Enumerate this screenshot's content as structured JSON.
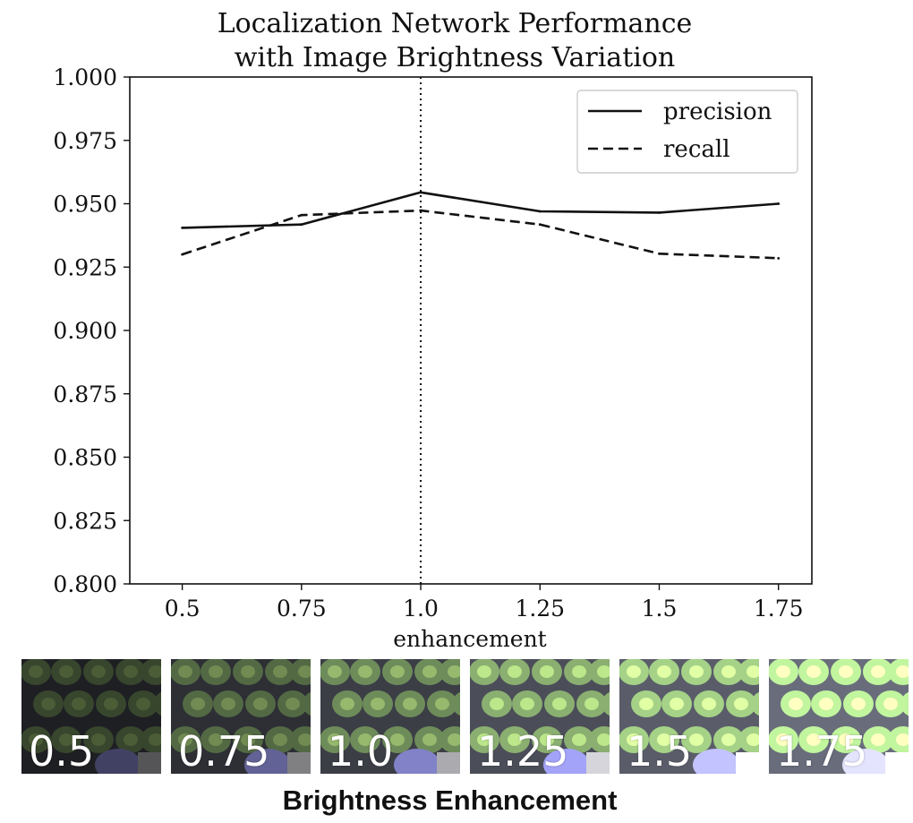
{
  "chart_data": {
    "type": "line",
    "title_line1": "Localization Network Performance",
    "title_line2": "with Image Brightness Variation",
    "xlabel": "enhancement",
    "ylabel": "",
    "x_tick_labels": [
      "0.5",
      "0.75",
      "1.0",
      "1.25",
      "1.5",
      "1.75"
    ],
    "y_tick_labels": [
      "0.800",
      "0.825",
      "0.850",
      "0.875",
      "0.900",
      "0.925",
      "0.950",
      "0.975",
      "1.000"
    ],
    "x": [
      0.5,
      0.75,
      1.0,
      1.25,
      1.5,
      1.75
    ],
    "xlim": [
      0.39,
      1.82
    ],
    "ylim": [
      0.8,
      1.0
    ],
    "vline_x": 1.0,
    "legend_position": "top-right",
    "grid": false,
    "series": [
      {
        "name": "precision",
        "style": "solid",
        "color": "#111111",
        "values": [
          0.9405,
          0.9418,
          0.9545,
          0.947,
          0.9465,
          0.95
        ]
      },
      {
        "name": "recall",
        "style": "dashed",
        "color": "#111111",
        "values": [
          0.93,
          0.9455,
          0.9473,
          0.9418,
          0.9303,
          0.9285
        ]
      }
    ]
  },
  "thumbnails": [
    {
      "label": "0.5",
      "brightness": 0.5
    },
    {
      "label": "0.75",
      "brightness": 0.75
    },
    {
      "label": "1.0",
      "brightness": 1.0
    },
    {
      "label": "1.25",
      "brightness": 1.25
    },
    {
      "label": "1.5",
      "brightness": 1.5
    },
    {
      "label": "1.75",
      "brightness": 1.75
    }
  ],
  "caption": "Brightness Enhancement"
}
